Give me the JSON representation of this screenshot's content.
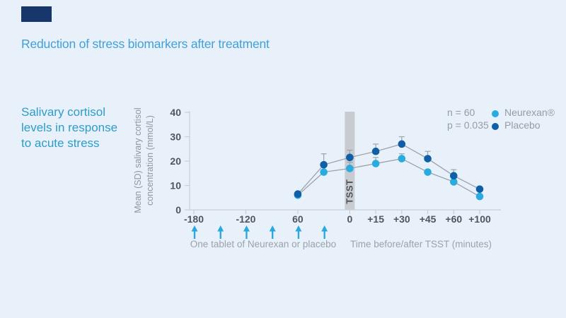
{
  "header": {
    "title": "Reduction of stress biomarkers after treatment"
  },
  "caption": {
    "text": "Salivary cortisol\nlevels in response\nto acute stress"
  },
  "colors": {
    "background": "#e8f1fa",
    "logo": "#17366b",
    "title": "#429fd8",
    "caption": "#2d9cc9",
    "neurexan": "#29abdf",
    "placebo": "#0e5fa5",
    "axis": "#c6ced6",
    "line": "#9ba3ab",
    "tick_text": "#4f555d",
    "muted_text": "#949ca6",
    "band": "#c8ccd1",
    "band_text": "#4d535b",
    "arrow": "#2aa9dd"
  },
  "chart_data": {
    "type": "line",
    "title": "",
    "ylabel": "Mean (SD) salivary cortisol\nconcentration (mmol/L)",
    "ylim": [
      0,
      40
    ],
    "yticks": [
      "0",
      "10",
      "20",
      "30",
      "40"
    ],
    "xticks": [
      {
        "label": "-180",
        "slot": 0
      },
      {
        "label": "-120",
        "slot": 2
      },
      {
        "label": "60",
        "slot": 4
      },
      {
        "label": "0",
        "slot": 6
      },
      {
        "label": "+15",
        "slot": 7
      },
      {
        "label": "+30",
        "slot": 8
      },
      {
        "label": "+45",
        "slot": 9
      },
      {
        "label": "+60",
        "slot": 10
      },
      {
        "label": "+100",
        "slot": 11
      }
    ],
    "grid": false,
    "legend_position": "top-right",
    "stats": {
      "n": "n = 60",
      "p": "p = 0.035"
    },
    "tsst_band": {
      "label": "TSST",
      "slot": 6
    },
    "arrows_slots": [
      0,
      1,
      2,
      3,
      4,
      5
    ],
    "arrow_caption": "One tablet of Neurexan or placebo",
    "time_caption": "Time before/after TSST (minutes)",
    "series": [
      {
        "name": "Neurexan®",
        "color": "#29abdf",
        "slots": [
          4,
          5,
          6,
          7,
          8,
          9,
          10,
          11
        ],
        "values": [
          6,
          15.5,
          17,
          19,
          21,
          15.5,
          11.5,
          5.5
        ],
        "err_up": [
          0,
          0,
          2.5,
          2.5,
          2,
          0,
          0,
          0
        ]
      },
      {
        "name": "Placebo",
        "color": "#0e5fa5",
        "slots": [
          4,
          5,
          6,
          7,
          8,
          9,
          10,
          11
        ],
        "values": [
          6.5,
          18.5,
          21.5,
          24,
          27,
          21,
          14,
          8.5
        ],
        "err_up": [
          0,
          4.5,
          3,
          3,
          3,
          3,
          2.5,
          0
        ]
      }
    ]
  }
}
